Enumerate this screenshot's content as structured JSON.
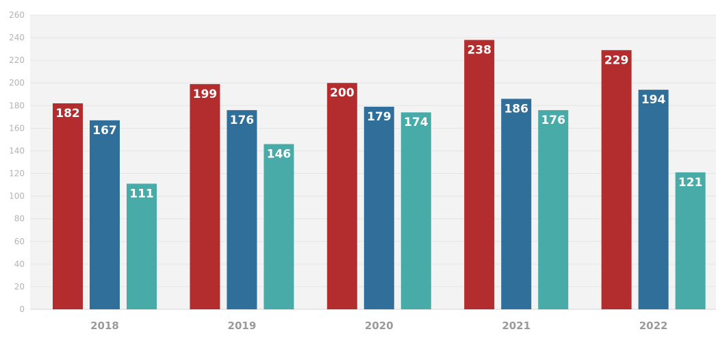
{
  "chart_data": {
    "type": "bar",
    "categories": [
      "2018",
      "2019",
      "2020",
      "2021",
      "2022"
    ],
    "series": [
      {
        "values": [
          182,
          199,
          200,
          238,
          229
        ],
        "color": "#b32d2e"
      },
      {
        "values": [
          167,
          176,
          179,
          186,
          194
        ],
        "color": "#2f6f9a"
      },
      {
        "values": [
          111,
          146,
          174,
          176,
          121
        ],
        "color": "#48aba8"
      }
    ],
    "ylim": [
      0,
      260
    ],
    "yticks": [
      0,
      20,
      40,
      60,
      80,
      100,
      120,
      140,
      160,
      180,
      200,
      220,
      240,
      260
    ],
    "grid": true,
    "legend": "none",
    "data_labels": true,
    "plot_background": "#f3f3f3",
    "title": "",
    "xlabel": "",
    "ylabel": ""
  }
}
